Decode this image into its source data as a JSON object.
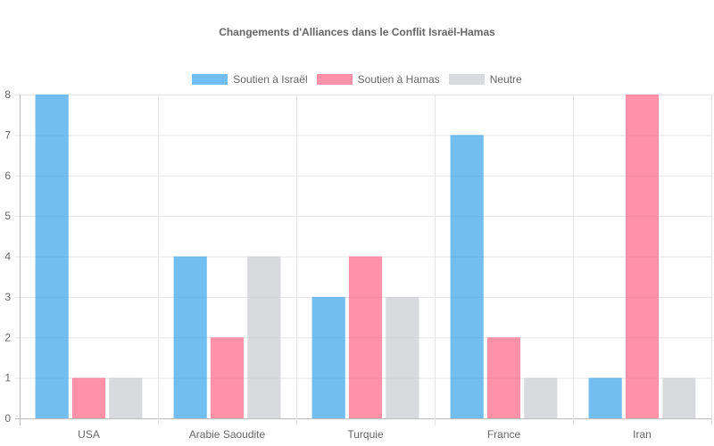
{
  "chart_data": {
    "type": "bar",
    "title": "Changements d'Alliances dans le Conflit Israël-Hamas",
    "categories": [
      "USA",
      "Arabie Saoudite",
      "Turquie",
      "France",
      "Iran"
    ],
    "series": [
      {
        "name": "Soutien à Israël",
        "color": "#36a2eb",
        "values": [
          8,
          4,
          3,
          7,
          1
        ]
      },
      {
        "name": "Soutien à Hamas",
        "color": "#ff6384",
        "values": [
          1,
          2,
          4,
          2,
          8
        ]
      },
      {
        "name": "Neutre",
        "color": "#c9cbcf",
        "values": [
          1,
          4,
          3,
          1,
          1
        ]
      }
    ],
    "xlabel": "",
    "ylabel": "",
    "ylim": [
      0,
      8
    ],
    "yticks": [
      0,
      1,
      2,
      3,
      4,
      5,
      6,
      7,
      8
    ],
    "grid": true,
    "legend_position": "top"
  }
}
